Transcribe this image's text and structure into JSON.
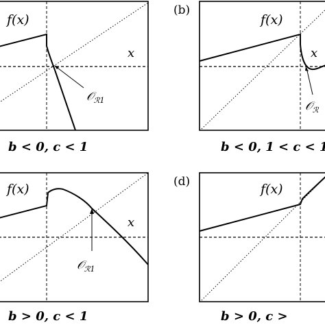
{
  "figure": {
    "panels": [
      {
        "id": "a",
        "letter": "",
        "fx_label": "f(x)",
        "x_label": "x",
        "point_label": "𝒪",
        "point_sub": "ℛ1",
        "caption": "b < 0, c < 1"
      },
      {
        "id": "b",
        "letter": "(b)",
        "fx_label": "f(x)",
        "x_label": "x",
        "point_label": "𝒪",
        "point_sub": "ℛ",
        "caption": "b < 0, 1 < c < 1"
      },
      {
        "id": "c",
        "letter": "",
        "fx_label": "f(x)",
        "x_label": "x",
        "point_label": "𝒪",
        "point_sub": "ℛ1",
        "caption": "b > 0, c < 1"
      },
      {
        "id": "d",
        "letter": "(d)",
        "fx_label": "f(x)",
        "x_label": "",
        "point_label": "",
        "point_sub": "",
        "caption": "b > 0, c >"
      }
    ]
  }
}
